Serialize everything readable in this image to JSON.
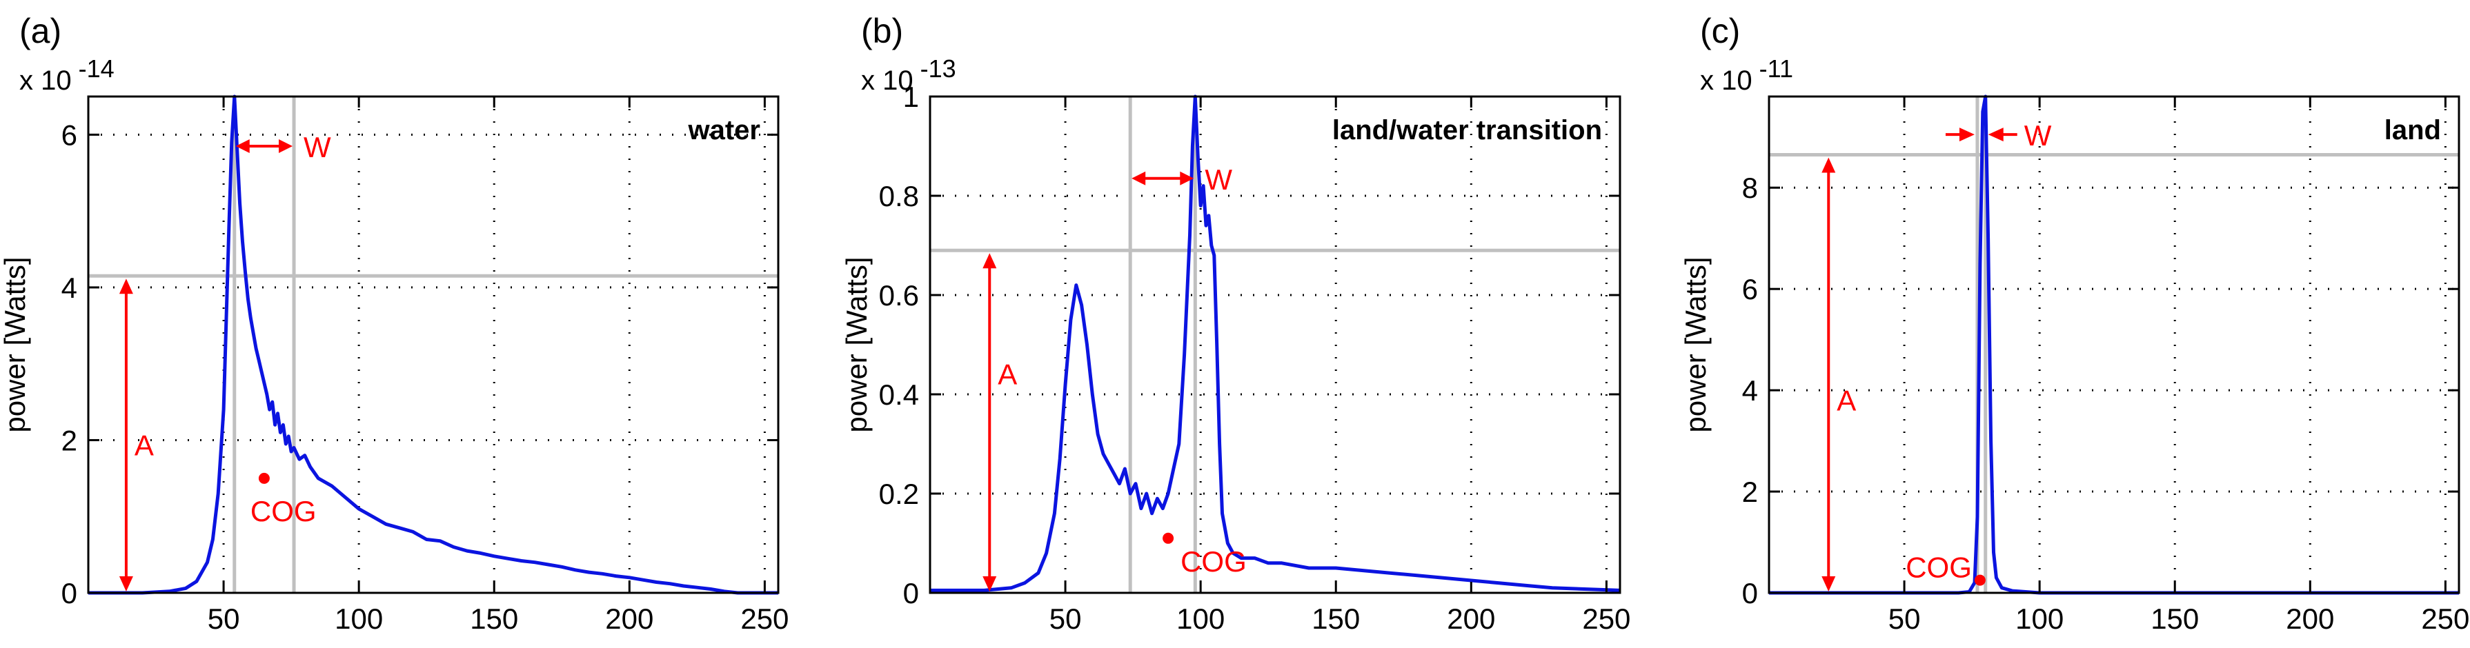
{
  "colors": {
    "series": "#0b14e0",
    "annotation": "#ff0000",
    "guide": "#c0c0c0",
    "axis": "#000000"
  },
  "chart_data": [
    {
      "type": "line",
      "panel_label": "(a)",
      "exponent_base": "x 10",
      "exponent_power": "-14",
      "ylabel": "power [Watts]",
      "title_in_plot": "water",
      "xlim": [
        0,
        255
      ],
      "ylim": [
        0,
        6.5
      ],
      "xticks": [
        50,
        100,
        150,
        200,
        250
      ],
      "yticks": [
        0,
        2,
        4,
        6
      ],
      "ytick_labels": [
        "0",
        "2",
        "4",
        "6"
      ],
      "grid": true,
      "guides": {
        "vlines": [
          54,
          76
        ],
        "hline": 4.15
      },
      "annotations": {
        "A_label": "A",
        "A_x": 14,
        "A_y_label": 1.8,
        "W_label": "W",
        "W_x1": 54,
        "W_x2": 76,
        "W_y": 5.85,
        "COG_label": "COG",
        "COG_x": 65,
        "COG_y": 1.5
      },
      "series": [
        {
          "x": [
            0,
            20,
            30,
            36,
            40,
            44,
            46,
            48,
            50,
            51,
            52,
            53,
            54,
            55,
            56,
            57,
            58,
            59,
            60,
            61,
            62,
            63,
            64,
            65,
            66,
            67,
            68,
            69,
            70,
            71,
            72,
            73,
            74,
            75,
            76,
            78,
            80,
            82,
            85,
            90,
            95,
            100,
            105,
            110,
            115,
            120,
            125,
            130,
            135,
            140,
            145,
            150,
            155,
            160,
            165,
            170,
            175,
            180,
            185,
            190,
            195,
            200,
            205,
            210,
            215,
            220,
            225,
            230,
            235,
            240,
            255
          ],
          "y": [
            0,
            0,
            0.02,
            0.06,
            0.15,
            0.4,
            0.7,
            1.3,
            2.4,
            3.6,
            4.8,
            5.9,
            6.5,
            5.8,
            5.1,
            4.6,
            4.2,
            3.85,
            3.6,
            3.4,
            3.2,
            3.05,
            2.9,
            2.75,
            2.6,
            2.4,
            2.5,
            2.2,
            2.35,
            2.1,
            2.2,
            1.95,
            2.05,
            1.85,
            1.9,
            1.75,
            1.8,
            1.65,
            1.5,
            1.4,
            1.25,
            1.1,
            1.0,
            0.9,
            0.85,
            0.8,
            0.7,
            0.68,
            0.6,
            0.55,
            0.52,
            0.48,
            0.45,
            0.42,
            0.4,
            0.37,
            0.34,
            0.3,
            0.27,
            0.25,
            0.22,
            0.2,
            0.17,
            0.14,
            0.12,
            0.09,
            0.07,
            0.05,
            0.02,
            0.0,
            0.0
          ]
        }
      ]
    },
    {
      "type": "line",
      "panel_label": "(b)",
      "exponent_base": "x 10",
      "exponent_power": "-13",
      "ylabel": "power [Watts]",
      "title_in_plot": "land/water transition",
      "xlim": [
        0,
        255
      ],
      "ylim": [
        0,
        1.0
      ],
      "xticks": [
        50,
        100,
        150,
        200,
        250
      ],
      "yticks": [
        0,
        0.2,
        0.4,
        0.6,
        0.8,
        1.0
      ],
      "ytick_labels": [
        "0",
        "0.2",
        "0.4",
        "0.6",
        "0.8",
        "1"
      ],
      "grid": true,
      "guides": {
        "vlines": [
          74,
          98
        ],
        "hline": 0.69
      },
      "annotations": {
        "A_label": "A",
        "A_x": 22,
        "A_y_label": 0.42,
        "W_label": "W",
        "W_x1": 74,
        "W_x2": 98,
        "W_y": 0.835,
        "COG_label": "COG",
        "COG_x": 88,
        "COG_y": 0.11
      },
      "series": [
        {
          "x": [
            0,
            20,
            30,
            35,
            40,
            43,
            46,
            48,
            50,
            52,
            54,
            56,
            58,
            60,
            62,
            64,
            66,
            68,
            70,
            72,
            74,
            76,
            78,
            80,
            82,
            84,
            86,
            88,
            90,
            92,
            94,
            96,
            97,
            98,
            99,
            100,
            101,
            102,
            103,
            104,
            105,
            106,
            107,
            108,
            110,
            112,
            115,
            120,
            125,
            130,
            140,
            150,
            160,
            170,
            180,
            190,
            200,
            210,
            220,
            230,
            240,
            255
          ],
          "y": [
            0.005,
            0.005,
            0.01,
            0.02,
            0.04,
            0.08,
            0.16,
            0.27,
            0.42,
            0.55,
            0.62,
            0.58,
            0.5,
            0.4,
            0.32,
            0.28,
            0.26,
            0.24,
            0.22,
            0.25,
            0.2,
            0.22,
            0.17,
            0.2,
            0.16,
            0.19,
            0.17,
            0.2,
            0.25,
            0.3,
            0.48,
            0.72,
            0.9,
            1.0,
            0.88,
            0.78,
            0.82,
            0.74,
            0.76,
            0.7,
            0.68,
            0.5,
            0.3,
            0.16,
            0.1,
            0.08,
            0.07,
            0.07,
            0.06,
            0.06,
            0.05,
            0.05,
            0.045,
            0.04,
            0.035,
            0.03,
            0.025,
            0.02,
            0.015,
            0.01,
            0.008,
            0.005
          ]
        }
      ]
    },
    {
      "type": "line",
      "panel_label": "(c)",
      "exponent_base": "x 10",
      "exponent_power": "-11",
      "ylabel": "power [Watts]",
      "title_in_plot": "land",
      "xlim": [
        0,
        255
      ],
      "ylim": [
        0,
        9.8
      ],
      "xticks": [
        50,
        100,
        150,
        200,
        250
      ],
      "yticks": [
        0,
        2,
        4,
        6,
        8
      ],
      "ytick_labels": [
        "0",
        "2",
        "4",
        "6",
        "8"
      ],
      "grid": true,
      "guides": {
        "vlines": [
          77,
          80
        ],
        "hline": 8.65
      },
      "annotations": {
        "A_label": "A",
        "A_x": 22,
        "A_y_label": 3.6,
        "W_label": "W",
        "W_x1": 77,
        "W_x2": 80,
        "W_y": 9.05,
        "COG_label": "COG",
        "COG_x": 78,
        "COG_y": 0.25
      },
      "series": [
        {
          "x": [
            0,
            70,
            74,
            76,
            77,
            78,
            79,
            80,
            81,
            82,
            83,
            84,
            86,
            90,
            100,
            255
          ],
          "y": [
            0,
            0,
            0.02,
            0.2,
            1.5,
            6.5,
            9.5,
            9.8,
            7.0,
            3.0,
            0.8,
            0.3,
            0.1,
            0.04,
            0.0,
            0.0
          ]
        }
      ]
    }
  ]
}
